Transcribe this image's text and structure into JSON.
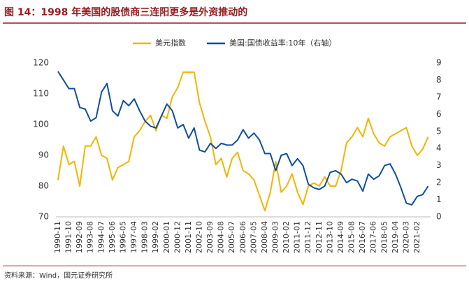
{
  "chart_data": {
    "type": "line",
    "title": "图 14：1998 年美国的股债商三连阳更多是外资推动的",
    "source": "资料来源：Wind，国元证券研究所",
    "legend": "top",
    "grid": false,
    "categories": [
      "1990-11",
      null,
      "1991-10",
      null,
      "1992-09",
      null,
      "1993-08",
      null,
      "1994-07",
      null,
      "1995-06",
      null,
      "1996-05",
      null,
      "1997-04",
      null,
      "1998-03",
      null,
      "1999-02",
      null,
      "2000-01",
      null,
      "2000-12",
      null,
      "2001-11",
      null,
      "2002-10",
      null,
      "2003-09",
      null,
      "2004-08",
      null,
      "2005-07",
      null,
      "2006-06",
      null,
      "2007-05",
      null,
      "2008-04",
      null,
      "2009-03",
      null,
      "2010-02",
      null,
      "2011-01",
      null,
      "2011-12",
      null,
      "2012-11",
      null,
      "2013-10",
      null,
      "2014-09",
      null,
      "2015-08",
      null,
      "2016-07",
      null,
      "2017-06",
      null,
      "2018-05",
      null,
      "2019-04",
      null,
      "2020-03",
      null,
      "2021-02",
      null,
      null
    ],
    "series": [
      {
        "name": "美元指数",
        "color": "#f5b400",
        "values": [
          82,
          93,
          87,
          88,
          80,
          93,
          93,
          96,
          90,
          89,
          82,
          86,
          87,
          88,
          96,
          98,
          101,
          103,
          98,
          103,
          102,
          109,
          112,
          117,
          117,
          117,
          107,
          101,
          96,
          87,
          89,
          83,
          89,
          91,
          85,
          84,
          82,
          77,
          72,
          78,
          88,
          78,
          80,
          84,
          78,
          74,
          80,
          81,
          80,
          83,
          80,
          80,
          85,
          94,
          96,
          99,
          96,
          102,
          97,
          94,
          93,
          96,
          97,
          98,
          99,
          93,
          90,
          92,
          96
        ]
      },
      {
        "name": "美国:国债收益率:10年（右轴）",
        "color": "#0e4ea3",
        "axis": "y2",
        "values": [
          8.5,
          8.0,
          7.5,
          7.5,
          6.4,
          6.3,
          5.6,
          5.8,
          7.3,
          7.8,
          6.2,
          5.9,
          6.8,
          6.5,
          6.9,
          6.2,
          5.6,
          5.3,
          5.2,
          5.9,
          6.6,
          6.2,
          5.2,
          5.4,
          4.6,
          5.2,
          3.9,
          3.8,
          4.3,
          4.0,
          4.3,
          4.2,
          4.2,
          4.5,
          5.1,
          4.6,
          4.9,
          4.5,
          3.7,
          3.7,
          2.7,
          3.6,
          3.7,
          3.0,
          3.4,
          3.0,
          1.9,
          1.7,
          1.6,
          1.8,
          2.6,
          2.7,
          2.5,
          2.0,
          2.2,
          2.1,
          1.5,
          2.5,
          2.2,
          2.4,
          3.0,
          3.1,
          2.5,
          1.7,
          0.8,
          0.7,
          1.2,
          1.3,
          1.8
        ]
      }
    ],
    "ylim": [
      70,
      120
    ],
    "yticks": [
      70,
      80,
      90,
      100,
      110,
      120
    ],
    "y2lim": [
      0,
      9
    ],
    "y2ticks": [
      0,
      1,
      2,
      3,
      4,
      5,
      6,
      7,
      8,
      9
    ]
  }
}
